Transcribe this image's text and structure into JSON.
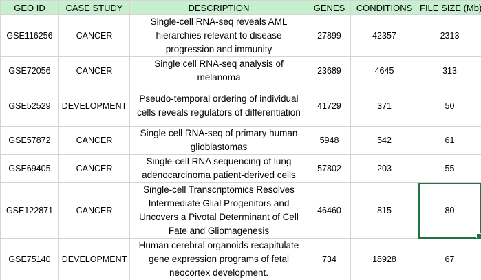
{
  "headers": [
    "GEO ID",
    "CASE STUDY",
    "DESCRIPTION",
    "GENES",
    "CONDITIONS",
    "FILE SIZE (Mb)"
  ],
  "rows": [
    {
      "geo_id": "GSE116256",
      "case_study": "CANCER",
      "description": "Single-cell RNA-seq reveals AML hierarchies relevant to disease progression and immunity",
      "genes": "27899",
      "conditions": "42357",
      "file_size": "2313"
    },
    {
      "geo_id": "GSE72056",
      "case_study": "CANCER",
      "description": "Single cell RNA-seq analysis of melanoma",
      "genes": "23689",
      "conditions": "4645",
      "file_size": "313"
    },
    {
      "geo_id": "GSE52529",
      "case_study": "DEVELOPMENT",
      "description": "Pseudo-temporal ordering of individual cells reveals regulators of differentiation",
      "genes": "41729",
      "conditions": "371",
      "file_size": "50"
    },
    {
      "geo_id": "GSE57872",
      "case_study": "CANCER",
      "description": "Single cell RNA-seq of primary human glioblastomas",
      "genes": "5948",
      "conditions": "542",
      "file_size": "61"
    },
    {
      "geo_id": "GSE69405",
      "case_study": "CANCER",
      "description": "Single-cell RNA sequencing of lung adenocarcinoma patient-derived cells",
      "genes": "57802",
      "conditions": "203",
      "file_size": "55"
    },
    {
      "geo_id": "GSE122871",
      "case_study": "CANCER",
      "description": "Single-cell Transcriptomics Resolves Intermediate Glial Progenitors and Uncovers a Pivotal Determinant of Cell Fate and Gliomagenesis",
      "genes": "46460",
      "conditions": "815",
      "file_size": "80"
    },
    {
      "geo_id": "GSE75140",
      "case_study": "DEVELOPMENT",
      "description": "Human cerebral organoids recapitulate gene expression programs of fetal neocortex development.",
      "genes": "734",
      "conditions": "18928",
      "file_size": "67"
    }
  ]
}
